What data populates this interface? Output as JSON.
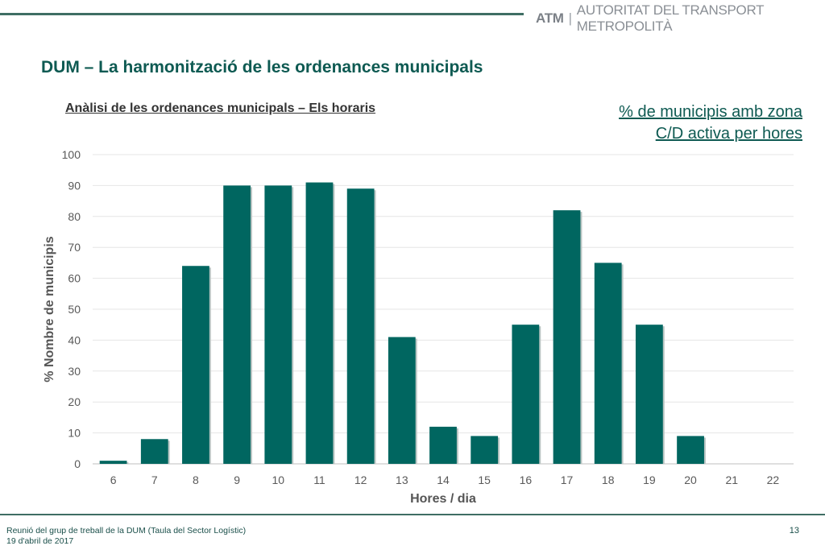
{
  "header": {
    "brand_mark": "ATM",
    "brand_separator": "|",
    "brand_name": "Autoritat del Transport Metropolità",
    "accent_color": "#3f6e64"
  },
  "page_title": "DUM – La harmonització de les ordenances municipals",
  "chart_subtitle": "Anàlisi de les ordenances municipals – Els horaris",
  "chart_note_line1": "% de municipis amb zona",
  "chart_note_line2": "C/D activa per hores",
  "chart_data": {
    "type": "bar",
    "categories": [
      "6",
      "7",
      "8",
      "9",
      "10",
      "11",
      "12",
      "13",
      "14",
      "15",
      "16",
      "17",
      "18",
      "19",
      "20",
      "21",
      "22"
    ],
    "values": [
      1,
      8,
      64,
      90,
      90,
      91,
      89,
      41,
      12,
      9,
      45,
      82,
      65,
      45,
      9,
      0,
      0
    ],
    "xlabel": "Hores / dia",
    "ylabel": "% Nombre de municipis",
    "ylim": [
      0,
      100
    ],
    "yticks": [
      0,
      10,
      20,
      30,
      40,
      50,
      60,
      70,
      80,
      90,
      100
    ],
    "grid": true,
    "bar_color": "#006660"
  },
  "footer": {
    "line1": "Reunió del grup de treball de la DUM (Taula del Sector Logístic)",
    "line2": "19 d'abril de 2017",
    "page_number": "13"
  }
}
